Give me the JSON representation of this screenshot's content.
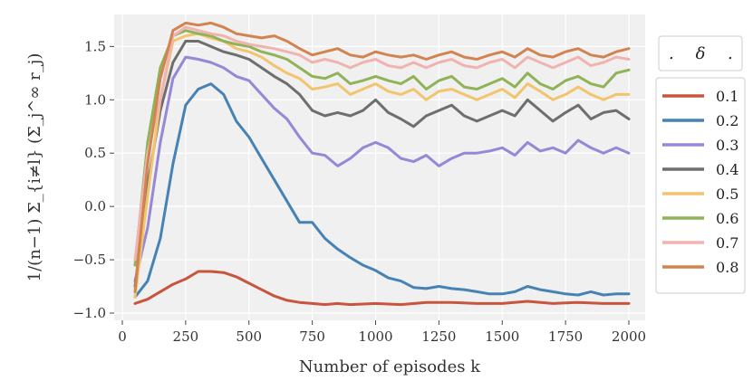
{
  "chart_data": {
    "type": "line",
    "title": "",
    "xlabel": "Number of episodes k",
    "ylabel": "1/(n−1) Σ_{i≠l} (Σ_j^∞ r_j)",
    "xlim": [
      0,
      2000
    ],
    "ylim": [
      -1.0,
      1.8
    ],
    "xticks": [
      "0",
      "250",
      "500",
      "750",
      "1000",
      "1250",
      "1500",
      "1750",
      "2000"
    ],
    "xtick_values": [
      0,
      250,
      500,
      750,
      1000,
      1250,
      1500,
      1750,
      2000
    ],
    "yticks": [
      "−1.0",
      "−0.5",
      "0.0",
      "0.5",
      "1.0",
      "1.5"
    ],
    "ytick_values": [
      -1.0,
      -0.5,
      0.0,
      0.5,
      1.0,
      1.5
    ],
    "grid": true,
    "legend": {
      "title": ".  δ  .",
      "title_left": ".",
      "title_symbol": "δ",
      "title_right": ".",
      "placement": "right"
    },
    "series": [
      {
        "name": "0.1",
        "color": "#c8553d",
        "x": [
          50,
          100,
          150,
          200,
          250,
          300,
          350,
          400,
          450,
          500,
          550,
          600,
          650,
          700,
          750,
          800,
          850,
          900,
          1000,
          1100,
          1200,
          1300,
          1400,
          1500,
          1600,
          1700,
          1800,
          1900,
          2000
        ],
        "y": [
          -0.91,
          -0.87,
          -0.8,
          -0.73,
          -0.68,
          -0.61,
          -0.61,
          -0.62,
          -0.66,
          -0.72,
          -0.78,
          -0.84,
          -0.88,
          -0.9,
          -0.91,
          -0.92,
          -0.91,
          -0.92,
          -0.91,
          -0.92,
          -0.9,
          -0.9,
          -0.91,
          -0.91,
          -0.89,
          -0.91,
          -0.9,
          -0.91,
          -0.91
        ]
      },
      {
        "name": "0.2",
        "color": "#4682b4",
        "x": [
          50,
          100,
          150,
          200,
          250,
          300,
          350,
          400,
          450,
          500,
          550,
          600,
          650,
          700,
          750,
          800,
          850,
          900,
          950,
          1000,
          1050,
          1100,
          1150,
          1200,
          1250,
          1300,
          1350,
          1400,
          1450,
          1500,
          1550,
          1600,
          1650,
          1700,
          1750,
          1800,
          1850,
          1900,
          1950,
          2000
        ],
        "y": [
          -0.85,
          -0.7,
          -0.3,
          0.4,
          0.95,
          1.1,
          1.15,
          1.05,
          0.8,
          0.65,
          0.45,
          0.25,
          0.05,
          -0.15,
          -0.15,
          -0.3,
          -0.4,
          -0.48,
          -0.55,
          -0.6,
          -0.67,
          -0.7,
          -0.76,
          -0.77,
          -0.75,
          -0.77,
          -0.78,
          -0.8,
          -0.82,
          -0.82,
          -0.8,
          -0.75,
          -0.78,
          -0.8,
          -0.82,
          -0.83,
          -0.8,
          -0.83,
          -0.82,
          -0.82
        ]
      },
      {
        "name": "0.3",
        "color": "#9588d6",
        "x": [
          50,
          100,
          150,
          200,
          250,
          300,
          350,
          400,
          450,
          500,
          550,
          600,
          650,
          700,
          750,
          800,
          850,
          900,
          950,
          1000,
          1050,
          1100,
          1150,
          1200,
          1250,
          1300,
          1350,
          1400,
          1450,
          1500,
          1550,
          1600,
          1650,
          1700,
          1750,
          1800,
          1850,
          1900,
          1950,
          2000
        ],
        "y": [
          -0.7,
          -0.2,
          0.6,
          1.2,
          1.4,
          1.38,
          1.35,
          1.3,
          1.22,
          1.18,
          1.05,
          0.92,
          0.82,
          0.65,
          0.5,
          0.48,
          0.38,
          0.45,
          0.55,
          0.6,
          0.55,
          0.45,
          0.42,
          0.48,
          0.38,
          0.45,
          0.5,
          0.5,
          0.52,
          0.55,
          0.48,
          0.6,
          0.52,
          0.55,
          0.5,
          0.62,
          0.55,
          0.5,
          0.55,
          0.5
        ]
      },
      {
        "name": "0.4",
        "color": "#6e6e6e",
        "x": [
          50,
          100,
          150,
          200,
          250,
          300,
          350,
          400,
          450,
          500,
          550,
          600,
          650,
          700,
          750,
          800,
          850,
          900,
          950,
          1000,
          1050,
          1100,
          1150,
          1200,
          1250,
          1300,
          1350,
          1400,
          1450,
          1500,
          1550,
          1600,
          1650,
          1700,
          1750,
          1800,
          1850,
          1900,
          1950,
          2000
        ],
        "y": [
          -0.75,
          0.2,
          0.9,
          1.35,
          1.55,
          1.55,
          1.5,
          1.45,
          1.42,
          1.38,
          1.3,
          1.22,
          1.15,
          1.05,
          0.9,
          0.85,
          0.88,
          0.85,
          0.9,
          1.0,
          0.88,
          0.82,
          0.75,
          0.85,
          0.9,
          0.95,
          0.85,
          0.8,
          0.85,
          0.9,
          0.85,
          1.0,
          0.9,
          0.8,
          0.88,
          0.95,
          0.82,
          0.88,
          0.9,
          0.82
        ]
      },
      {
        "name": "0.5",
        "color": "#f2c46d",
        "x": [
          50,
          100,
          150,
          200,
          250,
          300,
          350,
          400,
          450,
          500,
          550,
          600,
          650,
          700,
          750,
          800,
          850,
          900,
          950,
          1000,
          1050,
          1100,
          1150,
          1200,
          1250,
          1300,
          1350,
          1400,
          1450,
          1500,
          1550,
          1600,
          1650,
          1700,
          1750,
          1800,
          1850,
          1900,
          1950,
          2000
        ],
        "y": [
          -0.85,
          0.1,
          1.0,
          1.55,
          1.6,
          1.62,
          1.58,
          1.55,
          1.48,
          1.45,
          1.4,
          1.32,
          1.25,
          1.2,
          1.1,
          1.12,
          1.15,
          1.05,
          1.1,
          1.15,
          1.08,
          1.05,
          1.1,
          1.0,
          1.08,
          1.1,
          1.05,
          1.0,
          1.05,
          1.1,
          1.02,
          1.15,
          1.08,
          1.0,
          1.05,
          1.12,
          1.05,
          1.0,
          1.05,
          1.05
        ]
      },
      {
        "name": "0.6",
        "color": "#8fb356",
        "x": [
          50,
          100,
          150,
          200,
          250,
          300,
          350,
          400,
          450,
          500,
          550,
          600,
          650,
          700,
          750,
          800,
          850,
          900,
          950,
          1000,
          1050,
          1100,
          1150,
          1200,
          1250,
          1300,
          1350,
          1400,
          1450,
          1500,
          1550,
          1600,
          1650,
          1700,
          1750,
          1800,
          1850,
          1900,
          1950,
          2000
        ],
        "y": [
          -0.55,
          0.6,
          1.3,
          1.6,
          1.65,
          1.62,
          1.6,
          1.55,
          1.52,
          1.5,
          1.45,
          1.42,
          1.38,
          1.3,
          1.22,
          1.2,
          1.25,
          1.15,
          1.18,
          1.22,
          1.18,
          1.15,
          1.22,
          1.1,
          1.18,
          1.22,
          1.12,
          1.1,
          1.15,
          1.2,
          1.12,
          1.25,
          1.15,
          1.1,
          1.18,
          1.22,
          1.15,
          1.12,
          1.25,
          1.28
        ]
      },
      {
        "name": "0.7",
        "color": "#f0b3b0",
        "x": [
          50,
          100,
          150,
          200,
          250,
          300,
          350,
          400,
          450,
          500,
          550,
          600,
          650,
          700,
          750,
          800,
          850,
          900,
          950,
          1000,
          1050,
          1100,
          1150,
          1200,
          1250,
          1300,
          1350,
          1400,
          1450,
          1500,
          1550,
          1600,
          1650,
          1700,
          1750,
          1800,
          1850,
          1900,
          1950,
          2000
        ],
        "y": [
          -0.5,
          0.5,
          1.0,
          1.6,
          1.68,
          1.65,
          1.62,
          1.6,
          1.55,
          1.52,
          1.5,
          1.48,
          1.45,
          1.42,
          1.35,
          1.38,
          1.35,
          1.3,
          1.35,
          1.38,
          1.32,
          1.3,
          1.35,
          1.3,
          1.35,
          1.38,
          1.32,
          1.3,
          1.35,
          1.38,
          1.3,
          1.4,
          1.35,
          1.3,
          1.35,
          1.4,
          1.32,
          1.35,
          1.4,
          1.38
        ]
      },
      {
        "name": "0.8",
        "color": "#d2834f",
        "x": [
          50,
          100,
          150,
          200,
          250,
          300,
          350,
          400,
          450,
          500,
          550,
          600,
          650,
          700,
          750,
          800,
          850,
          900,
          950,
          1000,
          1050,
          1100,
          1150,
          1200,
          1250,
          1300,
          1350,
          1400,
          1450,
          1500,
          1550,
          1600,
          1650,
          1700,
          1750,
          1800,
          1850,
          1900,
          1950,
          2000
        ],
        "y": [
          -0.8,
          0.4,
          1.2,
          1.65,
          1.72,
          1.7,
          1.72,
          1.68,
          1.62,
          1.6,
          1.58,
          1.6,
          1.55,
          1.48,
          1.42,
          1.45,
          1.48,
          1.42,
          1.4,
          1.45,
          1.42,
          1.4,
          1.42,
          1.38,
          1.42,
          1.45,
          1.4,
          1.38,
          1.42,
          1.45,
          1.4,
          1.48,
          1.42,
          1.4,
          1.45,
          1.48,
          1.42,
          1.4,
          1.45,
          1.48
        ]
      }
    ]
  }
}
